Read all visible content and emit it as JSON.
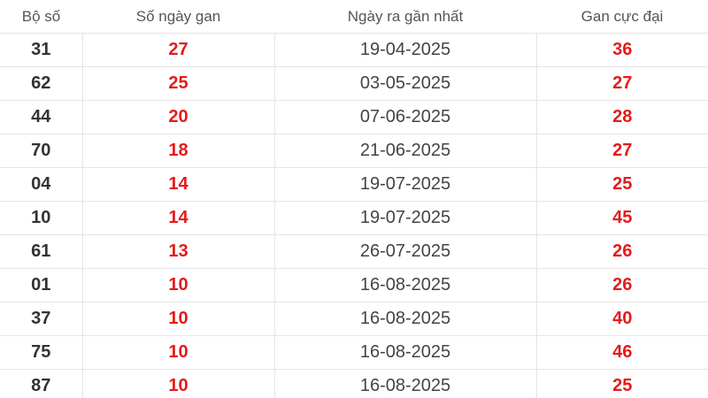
{
  "table": {
    "headers": [
      "Bộ số",
      "Số ngày gan",
      "Ngày ra gần nhất",
      "Gan cực đại"
    ],
    "rows": [
      [
        "31",
        "27",
        "19-04-2025",
        "36"
      ],
      [
        "62",
        "25",
        "03-05-2025",
        "27"
      ],
      [
        "44",
        "20",
        "07-06-2025",
        "28"
      ],
      [
        "70",
        "18",
        "21-06-2025",
        "27"
      ],
      [
        "04",
        "14",
        "19-07-2025",
        "25"
      ],
      [
        "10",
        "14",
        "19-07-2025",
        "45"
      ],
      [
        "61",
        "13",
        "26-07-2025",
        "26"
      ],
      [
        "01",
        "10",
        "16-08-2025",
        "26"
      ],
      [
        "37",
        "10",
        "16-08-2025",
        "40"
      ],
      [
        "75",
        "10",
        "16-08-2025",
        "46"
      ],
      [
        "87",
        "10",
        "16-08-2025",
        "25"
      ]
    ]
  },
  "colors": {
    "highlight": "#e41b1b",
    "text": "#333333"
  }
}
